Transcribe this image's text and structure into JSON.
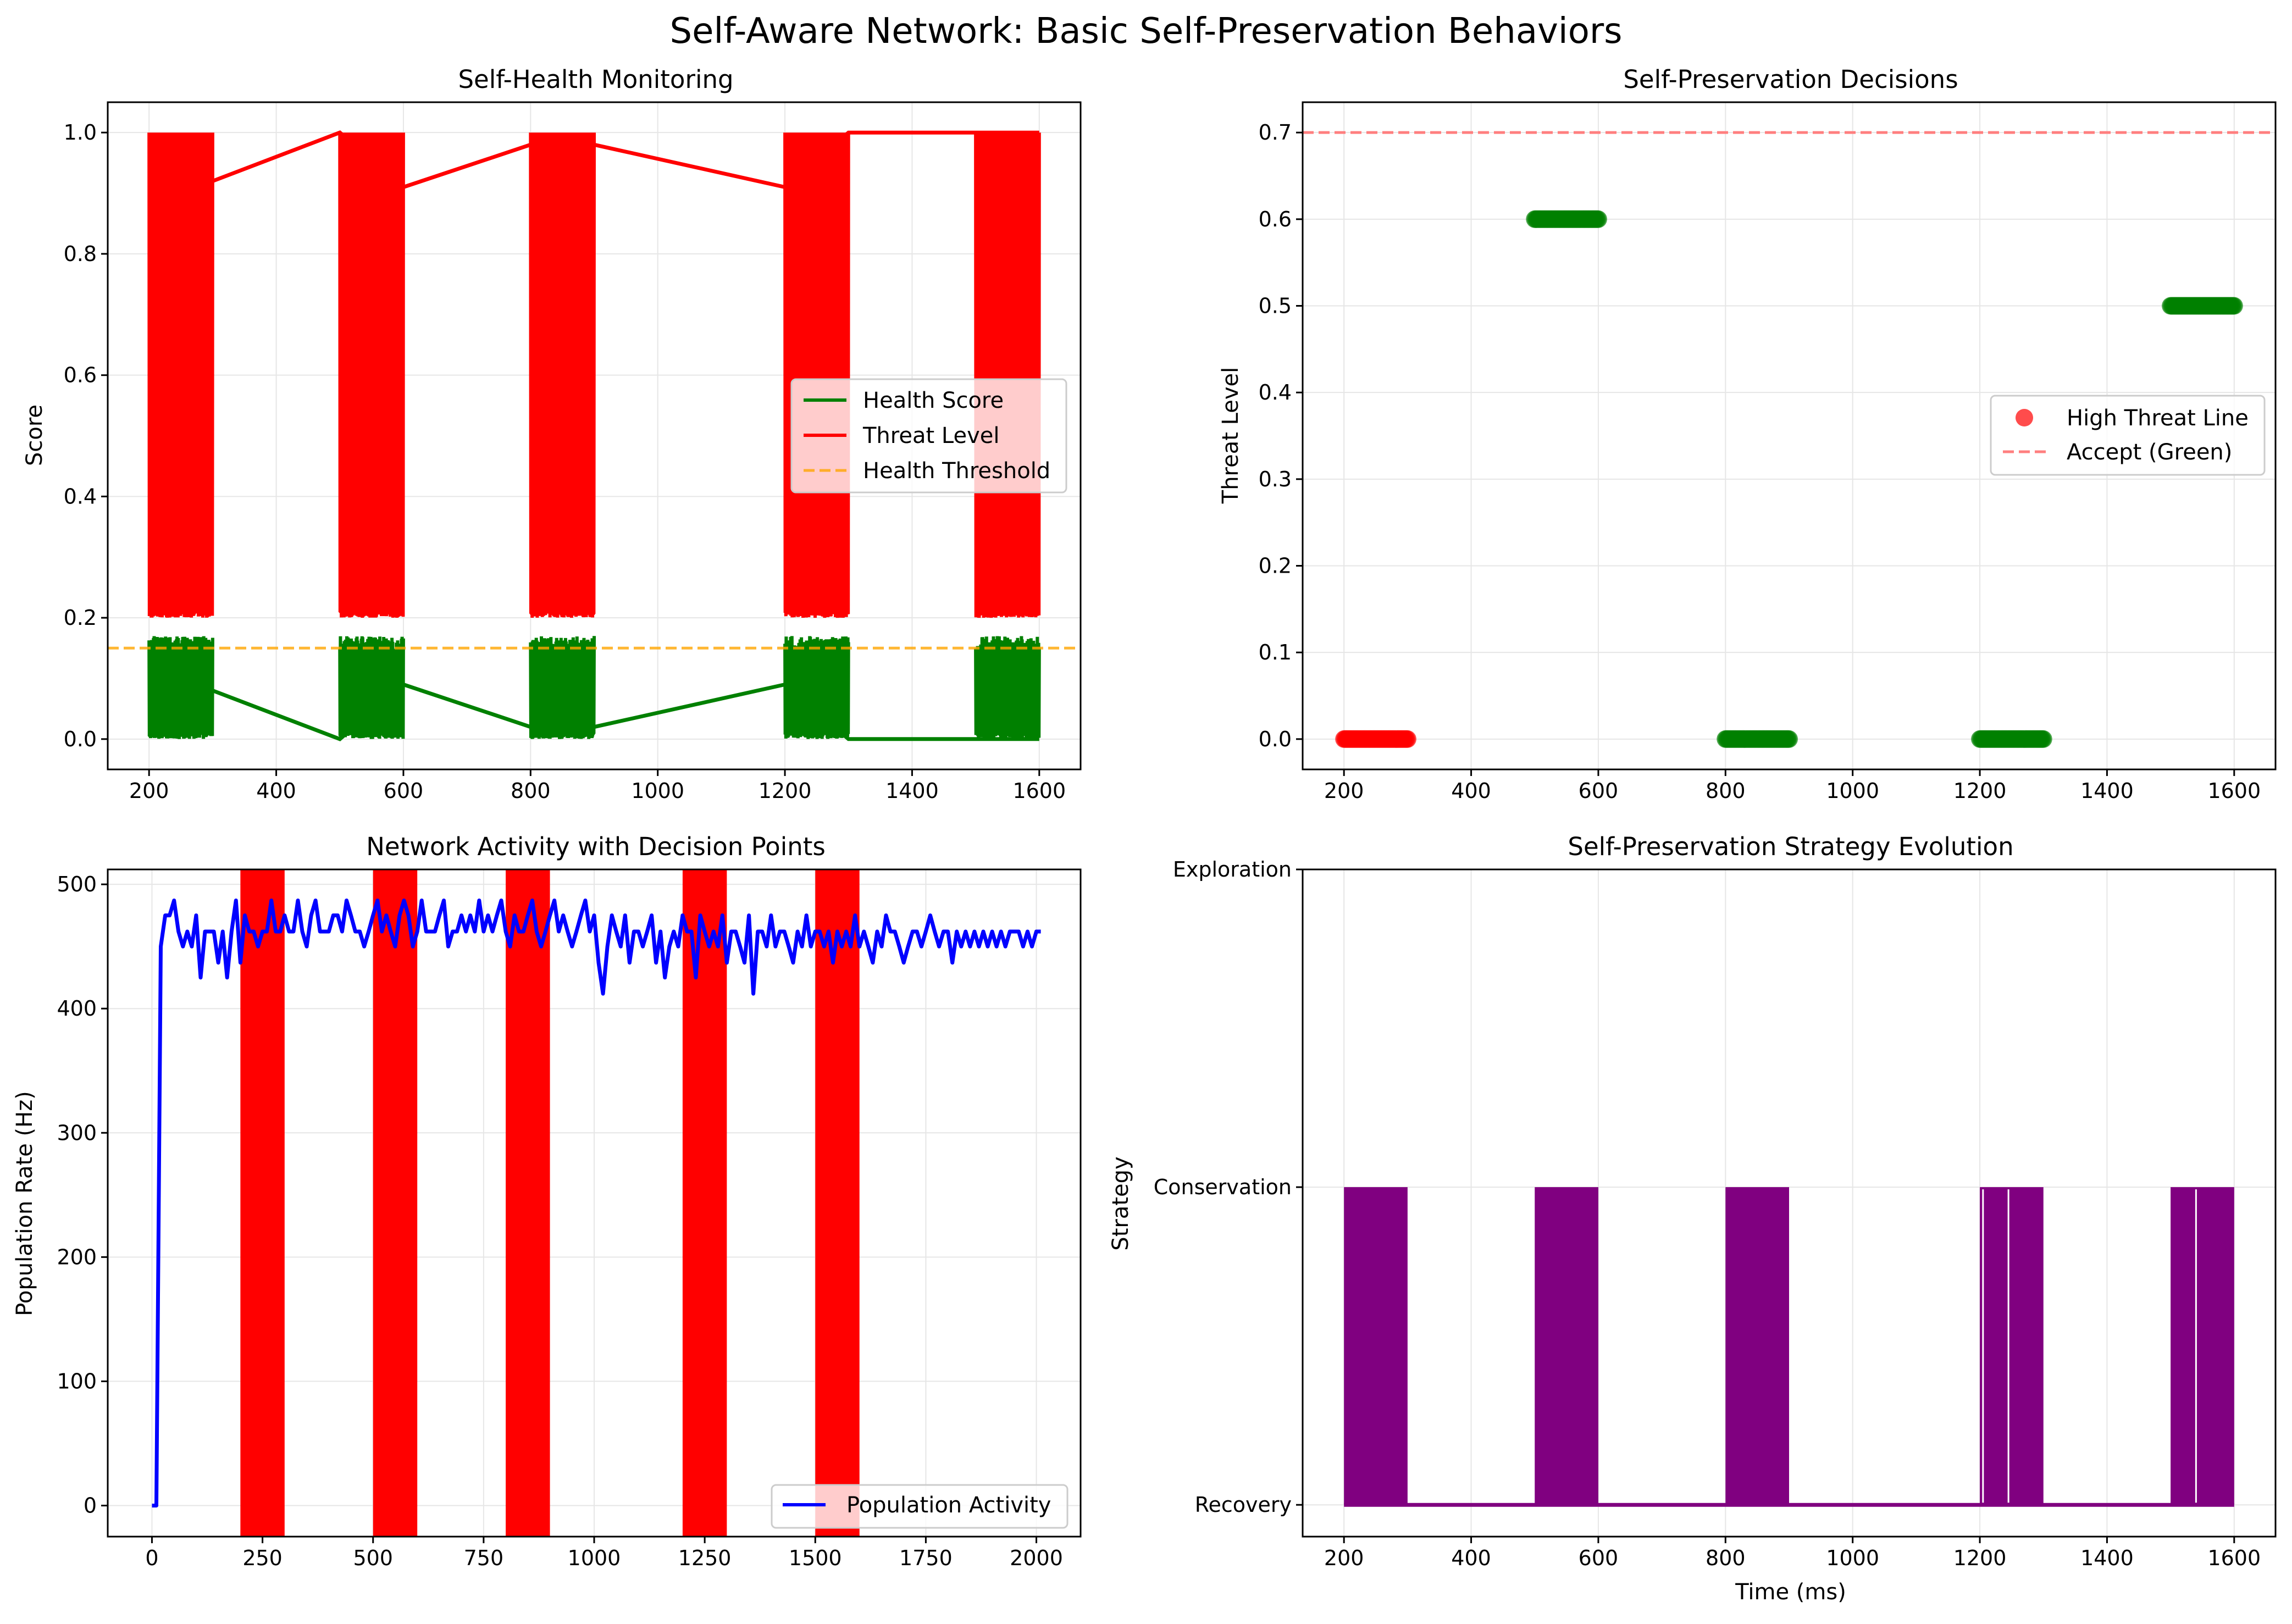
{
  "figure": {
    "title": "Self-Aware Network: Basic Self-Preservation Behaviors"
  },
  "colors": {
    "health": "#008000",
    "threat": "#ff0000",
    "threshold": "#ffa500",
    "population": "#0000ff",
    "strategy": "#800080",
    "accept_line": "#ff7f7f",
    "grid": "#e6e6e6"
  },
  "chart_data": [
    {
      "id": "health",
      "type": "line",
      "title": "Self-Health Monitoring",
      "xlabel": "",
      "ylabel": "Score",
      "xlim": [
        135,
        1665
      ],
      "ylim": [
        -0.05,
        1.05
      ],
      "xticks": [
        200,
        400,
        600,
        800,
        1000,
        1200,
        1400,
        1600
      ],
      "yticks": [
        0.0,
        0.2,
        0.4,
        0.6,
        0.8,
        1.0
      ],
      "ytick_labels": [
        "0.0",
        "0.2",
        "0.4",
        "0.6",
        "0.8",
        "1.0"
      ],
      "grid": true,
      "legend_loc": "center right",
      "bursts": [
        [
          200,
          300
        ],
        [
          500,
          600
        ],
        [
          800,
          900
        ],
        [
          1200,
          1300
        ],
        [
          1500,
          1600
        ]
      ],
      "series": [
        {
          "name": "Health Score",
          "burst_range": [
            0.0,
            0.17
          ],
          "x": [
            200,
            300,
            500,
            600,
            800,
            900,
            1200,
            1300,
            1500,
            1600
          ],
          "values": [
            0.12,
            0.08,
            0.0,
            0.09,
            0.02,
            0.02,
            0.09,
            0.0,
            0.0,
            0.0
          ]
        },
        {
          "name": "Threat Level",
          "burst_range": [
            0.2,
            1.0
          ],
          "x": [
            200,
            300,
            500,
            600,
            800,
            900,
            1200,
            1300,
            1500,
            1600
          ],
          "values": [
            0.88,
            0.92,
            1.0,
            0.91,
            0.98,
            0.98,
            0.91,
            1.0,
            1.0,
            1.0
          ]
        }
      ],
      "hlines": [
        {
          "name": "Health Threshold",
          "y": 0.15,
          "style": "dashed"
        }
      ]
    },
    {
      "id": "decisions",
      "type": "scatter",
      "title": "Self-Preservation Decisions",
      "xlabel": "",
      "ylabel": "Threat Level",
      "xlim": [
        135,
        1665
      ],
      "ylim": [
        -0.035,
        0.735
      ],
      "xticks": [
        200,
        400,
        600,
        800,
        1000,
        1200,
        1400,
        1600
      ],
      "yticks": [
        0.0,
        0.1,
        0.2,
        0.3,
        0.4,
        0.5,
        0.6,
        0.7
      ],
      "ytick_labels": [
        "0.0",
        "0.1",
        "0.2",
        "0.3",
        "0.4",
        "0.5",
        "0.6",
        "0.7"
      ],
      "grid": true,
      "legend_loc": "center right",
      "legend": [
        "High Threat Line",
        "Accept (Green)"
      ],
      "groups": [
        {
          "x": [
            200,
            300
          ],
          "y": 0.0,
          "color": "red"
        },
        {
          "x": [
            500,
            600
          ],
          "y": 0.6,
          "color": "green"
        },
        {
          "x": [
            800,
            900
          ],
          "y": 0.0,
          "color": "green"
        },
        {
          "x": [
            1200,
            1300
          ],
          "y": 0.0,
          "color": "green"
        },
        {
          "x": [
            1500,
            1600
          ],
          "y": 0.5,
          "color": "green"
        }
      ],
      "hlines": [
        {
          "y": 0.7,
          "style": "dashed"
        }
      ]
    },
    {
      "id": "activity",
      "type": "line",
      "title": "Network Activity with Decision Points",
      "xlabel": "",
      "ylabel": "Population Rate (Hz)",
      "xlim": [
        -100,
        2100
      ],
      "ylim": [
        -25,
        512
      ],
      "xticks": [
        0,
        250,
        500,
        750,
        1000,
        1250,
        1500,
        1750,
        2000
      ],
      "yticks": [
        0,
        100,
        200,
        300,
        400,
        500
      ],
      "ytick_labels": [
        "0",
        "100",
        "200",
        "300",
        "400",
        "500"
      ],
      "grid": true,
      "legend_loc": "lower right",
      "decision_spans": [
        [
          200,
          300
        ],
        [
          500,
          600
        ],
        [
          800,
          900
        ],
        [
          1200,
          1300
        ],
        [
          1500,
          1600
        ]
      ],
      "series": [
        {
          "name": "Population Activity",
          "x_start": 0,
          "x_step": 10,
          "values": [
            0,
            0,
            450,
            475,
            475,
            487,
            462,
            450,
            462,
            450,
            475,
            425,
            462,
            462,
            462,
            437,
            462,
            425,
            462,
            487,
            437,
            475,
            462,
            462,
            450,
            462,
            462,
            487,
            462,
            462,
            475,
            462,
            462,
            487,
            462,
            450,
            475,
            487,
            462,
            462,
            462,
            475,
            475,
            462,
            487,
            475,
            462,
            462,
            450,
            462,
            475,
            487,
            462,
            475,
            462,
            450,
            475,
            487,
            475,
            450,
            462,
            487,
            462,
            462,
            462,
            475,
            487,
            450,
            462,
            462,
            475,
            462,
            475,
            462,
            487,
            462,
            475,
            462,
            475,
            487,
            462,
            450,
            475,
            462,
            462,
            475,
            487,
            462,
            450,
            462,
            475,
            487,
            462,
            475,
            462,
            450,
            462,
            475,
            487,
            462,
            475,
            437,
            412,
            450,
            475,
            462,
            450,
            475,
            437,
            462,
            462,
            450,
            462,
            475,
            437,
            462,
            425,
            450,
            462,
            450,
            475,
            462,
            462,
            425,
            475,
            462,
            450,
            462,
            450,
            475,
            437,
            462,
            462,
            450,
            437,
            475,
            412,
            462,
            462,
            450,
            475,
            450,
            462,
            462,
            450,
            437,
            462,
            450,
            475,
            450,
            462,
            462,
            450,
            462,
            437,
            462,
            450,
            462,
            450,
            475,
            450,
            462,
            450,
            437,
            462,
            450,
            475,
            462,
            462,
            450,
            437,
            450,
            462,
            462,
            450,
            462,
            475,
            462,
            450,
            462,
            462,
            437,
            462,
            450,
            462,
            450,
            462,
            450,
            462,
            450,
            462,
            450,
            462,
            450,
            462,
            462,
            462,
            450,
            462,
            450,
            462,
            462
          ]
        }
      ]
    },
    {
      "id": "strategy",
      "type": "line",
      "title": "Self-Preservation Strategy Evolution",
      "xlabel": "Time (ms)",
      "ylabel": "Strategy",
      "xlim": [
        135,
        1665
      ],
      "ylim": [
        -0.1,
        2.0
      ],
      "xticks": [
        200,
        400,
        600,
        800,
        1000,
        1200,
        1400,
        1600
      ],
      "yticks": [
        0,
        1,
        2
      ],
      "ytick_labels": [
        "Recovery",
        "Conservation",
        "Exploration"
      ],
      "grid": true,
      "blocks": [
        {
          "x": [
            200,
            300
          ]
        },
        {
          "x": [
            500,
            600
          ]
        },
        {
          "x": [
            800,
            900
          ]
        },
        {
          "x": [
            1200,
            1300
          ]
        },
        {
          "x": [
            1500,
            1600
          ]
        }
      ],
      "baseline": 0,
      "block_level": 1
    }
  ],
  "legends": {
    "health": [
      "Health Score",
      "Threat Level",
      "Health Threshold"
    ],
    "decisions": [
      "High Threat Line",
      "Accept (Green)"
    ],
    "activity": [
      "Population Activity"
    ]
  }
}
